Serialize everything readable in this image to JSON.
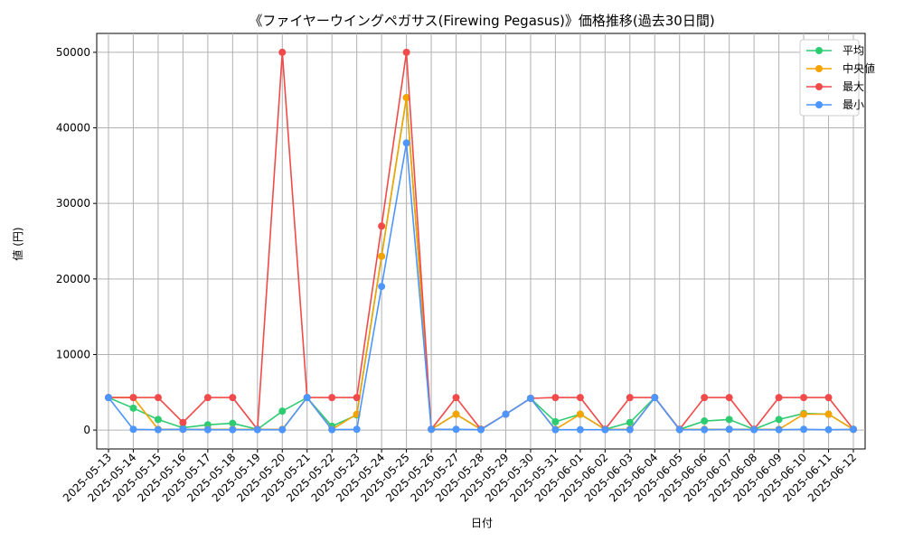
{
  "chart_data": {
    "type": "line",
    "title": "《ファイヤーウイングペガサス(Firewing Pegasus)》価格推移(過去30日間)",
    "xlabel": "日付",
    "ylabel": "値 (円)",
    "ylim": [
      -2500,
      52500
    ],
    "yticks": [
      0,
      10000,
      20000,
      30000,
      40000,
      50000
    ],
    "grid": true,
    "legend_position": "top-right",
    "categories": [
      "2025-05-13",
      "2025-05-14",
      "2025-05-15",
      "2025-05-16",
      "2025-05-17",
      "2025-05-18",
      "2025-05-19",
      "2025-05-20",
      "2025-05-21",
      "2025-05-22",
      "2025-05-23",
      "2025-05-24",
      "2025-05-25",
      "2025-05-26",
      "2025-05-27",
      "2025-05-28",
      "2025-05-29",
      "2025-05-30",
      "2025-05-31",
      "2025-06-01",
      "2025-06-02",
      "2025-06-03",
      "2025-06-04",
      "2025-06-05",
      "2025-06-06",
      "2025-06-07",
      "2025-06-08",
      "2025-06-09",
      "2025-06-10",
      "2025-06-11",
      "2025-06-12"
    ],
    "series": [
      {
        "name": "平均",
        "color": "#2ecc71",
        "values": [
          4300,
          2900,
          1400,
          300,
          700,
          900,
          100,
          2500,
          4300,
          500,
          2000,
          23000,
          44000,
          100,
          2100,
          100,
          2100,
          4200,
          1100,
          2100,
          100,
          1000,
          4300,
          100,
          1200,
          1400,
          100,
          1400,
          2200,
          2100,
          100
        ]
      },
      {
        "name": "中央値",
        "color": "#f5a300",
        "values": [
          4300,
          4300,
          100,
          100,
          100,
          100,
          100,
          100,
          4300,
          100,
          2100,
          23000,
          44000,
          100,
          2100,
          100,
          2100,
          4200,
          100,
          2100,
          100,
          100,
          4300,
          100,
          100,
          100,
          100,
          100,
          2100,
          2100,
          100
        ]
      },
      {
        "name": "最大",
        "color": "#f04a4a",
        "values": [
          4300,
          4300,
          4300,
          1000,
          4300,
          4300,
          100,
          50000,
          4300,
          4300,
          4300,
          27000,
          50000,
          100,
          4300,
          100,
          2100,
          4200,
          4300,
          4300,
          100,
          4300,
          4300,
          100,
          4300,
          4300,
          100,
          4300,
          4300,
          4300,
          100
        ]
      },
      {
        "name": "最小",
        "color": "#4d96ff",
        "values": [
          4300,
          100,
          50,
          100,
          50,
          50,
          50,
          50,
          4300,
          50,
          100,
          19000,
          38000,
          100,
          100,
          50,
          2100,
          4200,
          50,
          50,
          50,
          50,
          4300,
          50,
          50,
          100,
          50,
          50,
          100,
          50,
          100
        ]
      }
    ]
  }
}
